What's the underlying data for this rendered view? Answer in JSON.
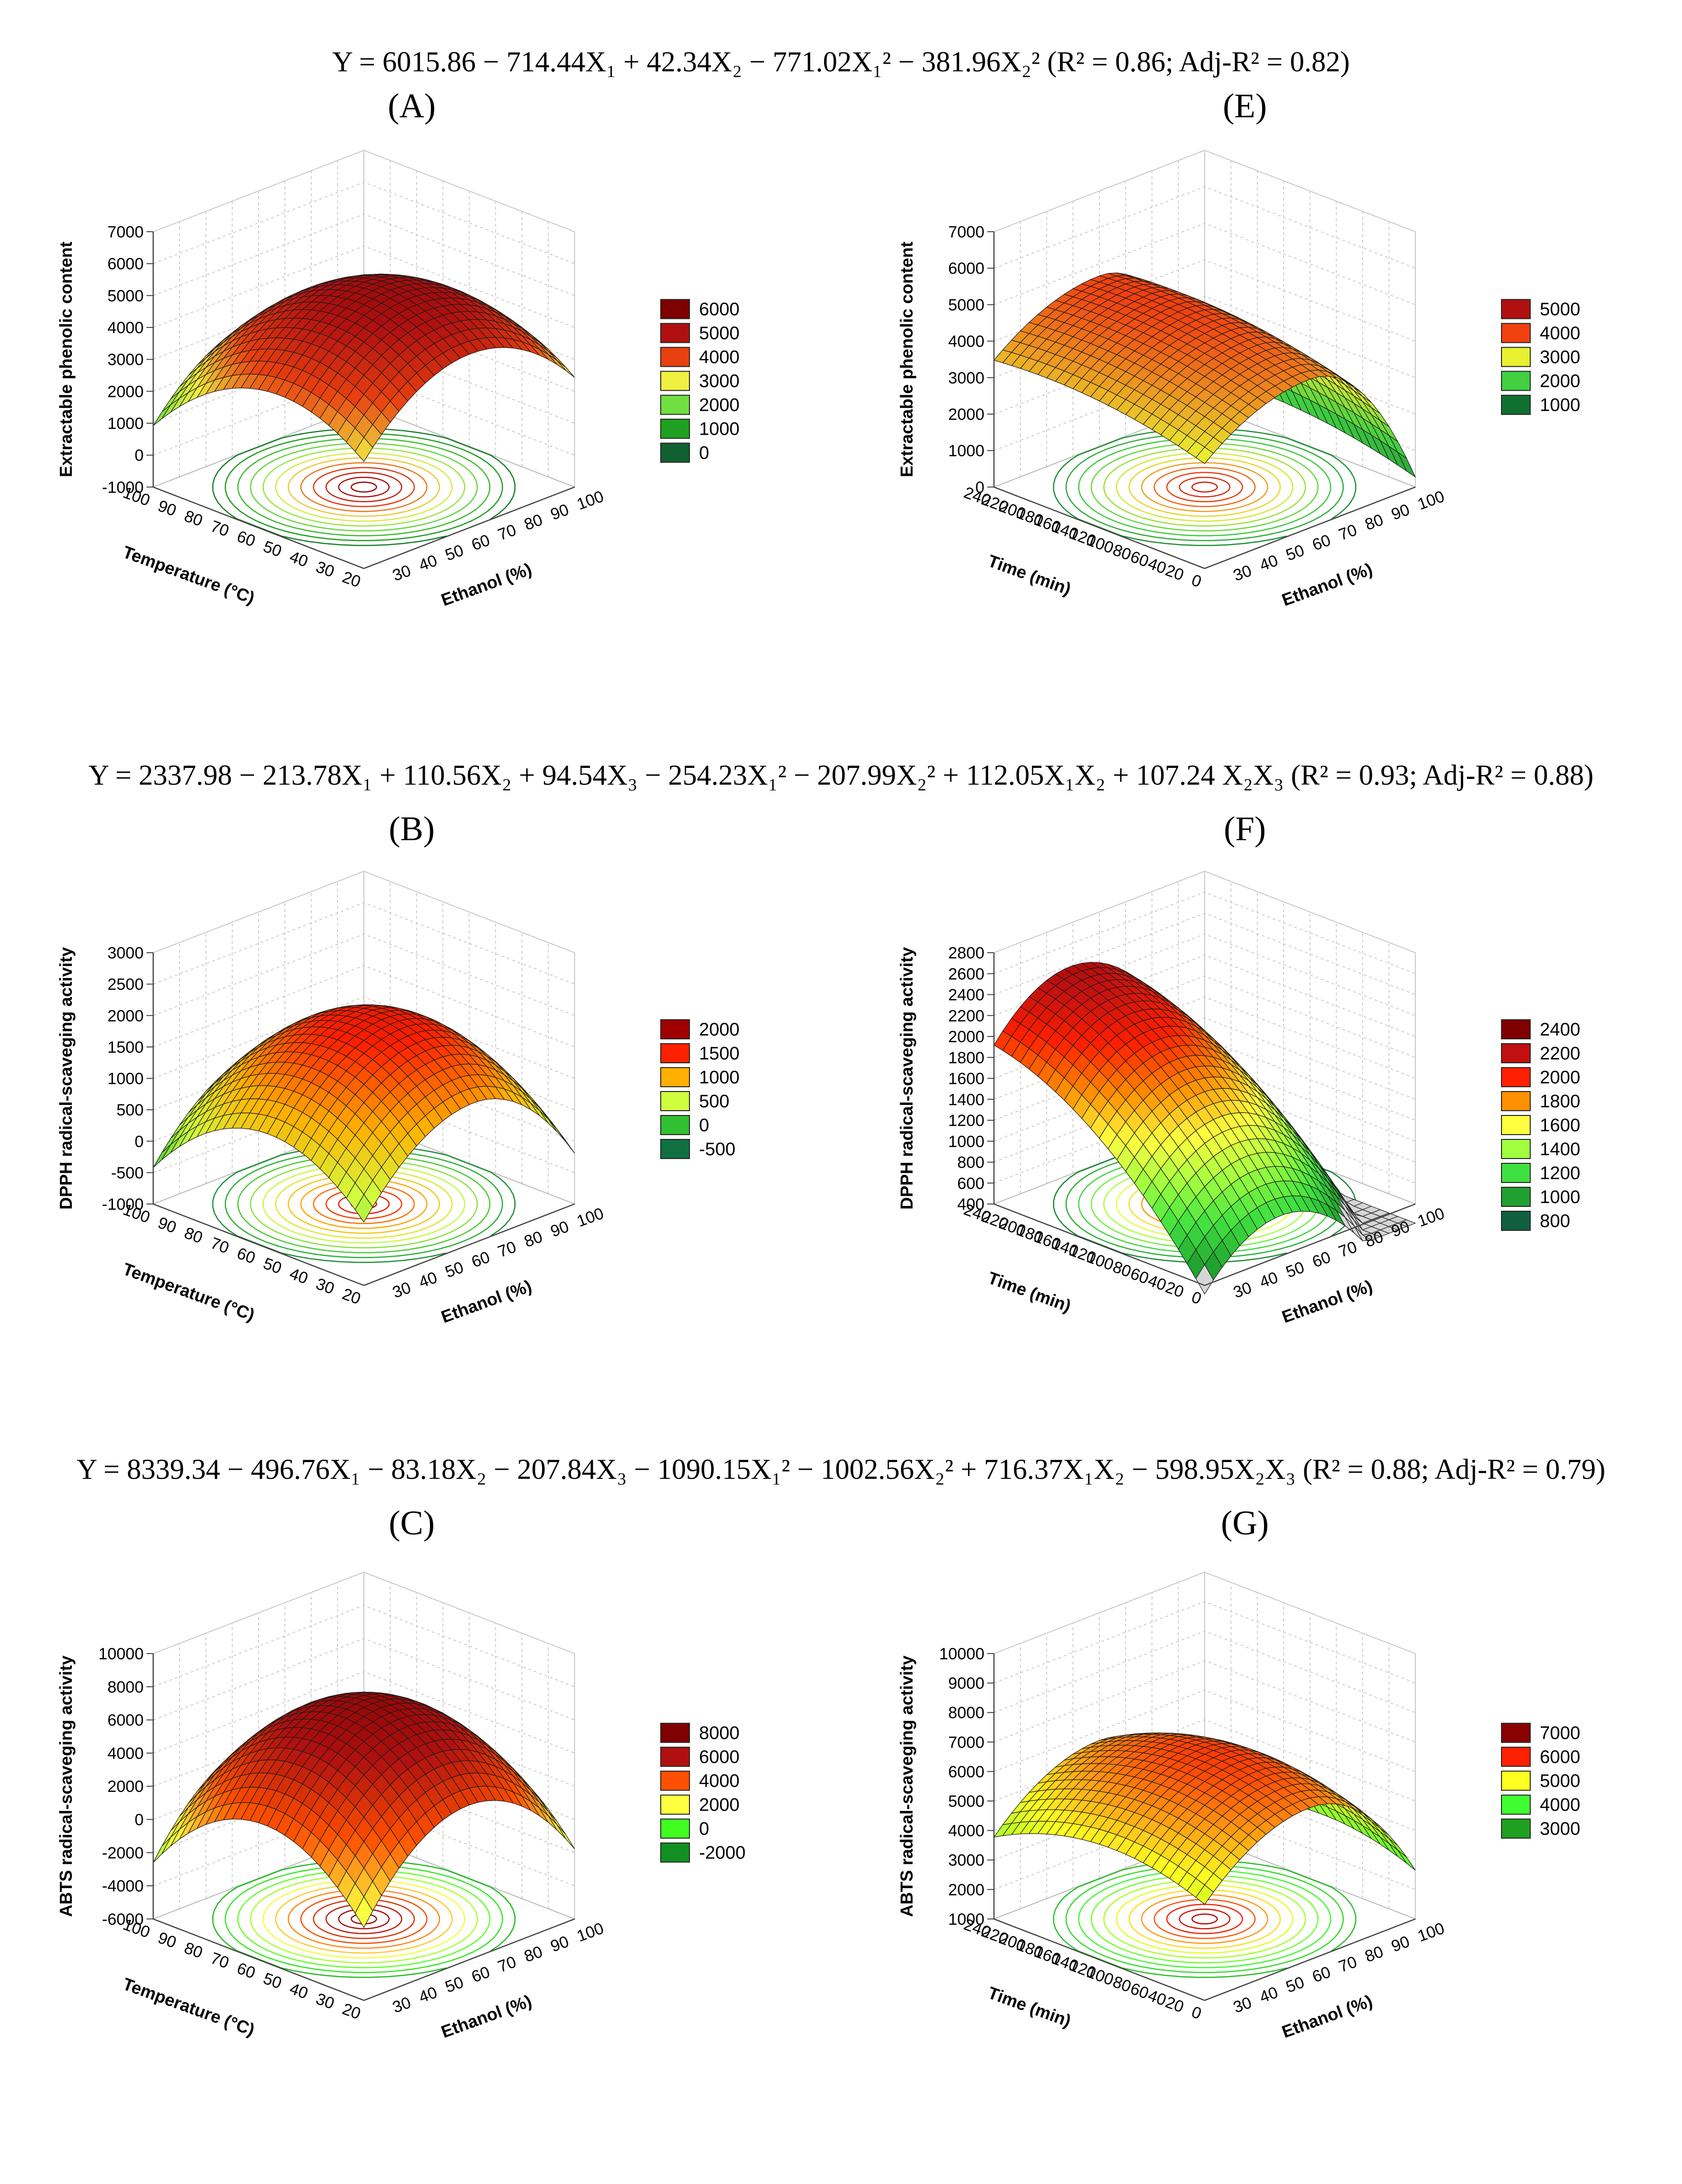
{
  "equations": [
    "Y = 6015.86 − 714.44X₁ + 42.34X₂ − 771.02X₁² − 381.96X₂² (R² = 0.86; Adj-R² = 0.82)",
    "Y = 2337.98 − 213.78X₁ + 110.56X₂ + 94.54X₃ − 254.23X₁² − 207.99X₂² + 112.05X₁X₂ + 107.24 X₂X₃ (R² = 0.93; Adj-R² = 0.88)",
    "Y = 8339.34 − 496.76X₁ − 83.18X₂ − 207.84X₃ − 1090.15X₁² − 1002.56X₂² + 716.37X₁X₂ − 598.95X₂X₃ (R² = 0.88; Adj-R² = 0.79)"
  ],
  "chart_data": [
    {
      "id": "A",
      "type": "surface3d",
      "label": "(A)",
      "zlabel": "Extractable phenolic content",
      "ylabel": "Temperature (°C)",
      "xlabel": "Ethanol (%)",
      "zticks": [
        "7000",
        "6000",
        "5000",
        "4000",
        "3000",
        "2000",
        "1000",
        "0",
        "-1000"
      ],
      "zlim": [
        -1000,
        7000
      ],
      "yticks": [
        "100",
        "90",
        "80",
        "70",
        "60",
        "50",
        "40",
        "30",
        "20"
      ],
      "xticks": [
        "30",
        "40",
        "50",
        "60",
        "70",
        "80",
        "90",
        "100"
      ],
      "ylim": [
        20,
        100
      ],
      "xlim": [
        20,
        100
      ],
      "legend": [
        {
          "label": "6000",
          "color": "#7f0000"
        },
        {
          "label": "5000",
          "color": "#b01010"
        },
        {
          "label": "4000",
          "color": "#e84010"
        },
        {
          "label": "3000",
          "color": "#f0f040"
        },
        {
          "label": "2000",
          "color": "#70e040"
        },
        {
          "label": "1000",
          "color": "#20a020"
        },
        {
          "label": "0",
          "color": "#106030"
        }
      ]
    },
    {
      "id": "E",
      "type": "surface3d",
      "label": "(E)",
      "zlabel": "Extractable phenolic content",
      "ylabel": "Time (min)",
      "xlabel": "Ethanol (%)",
      "zticks": [
        "7000",
        "6000",
        "5000",
        "4000",
        "3000",
        "2000",
        "1000",
        "0"
      ],
      "zlim": [
        0,
        7000
      ],
      "yticks": [
        "240",
        "220",
        "200",
        "180",
        "160",
        "140",
        "120",
        "100",
        "80",
        "60",
        "40",
        "20",
        "0"
      ],
      "xticks": [
        "30",
        "40",
        "50",
        "60",
        "70",
        "80",
        "90",
        "100"
      ],
      "ylim": [
        0,
        240
      ],
      "xlim": [
        20,
        100
      ],
      "legend": [
        {
          "label": "5000",
          "color": "#b01010"
        },
        {
          "label": "4000",
          "color": "#f04010"
        },
        {
          "label": "3000",
          "color": "#e8f030"
        },
        {
          "label": "2000",
          "color": "#40d040"
        },
        {
          "label": "1000",
          "color": "#107030"
        }
      ]
    },
    {
      "id": "B",
      "type": "surface3d",
      "label": "(B)",
      "zlabel": "DPPH radical-scaveging activity",
      "ylabel": "Temperature (°C)",
      "xlabel": "Ethanol (%)",
      "zticks": [
        "3000",
        "2500",
        "2000",
        "1500",
        "1000",
        "500",
        "0",
        "-500",
        "-1000"
      ],
      "zlim": [
        -1000,
        3000
      ],
      "yticks": [
        "100",
        "90",
        "80",
        "70",
        "60",
        "50",
        "40",
        "30",
        "20"
      ],
      "xticks": [
        "30",
        "40",
        "50",
        "60",
        "70",
        "80",
        "90",
        "100"
      ],
      "ylim": [
        20,
        100
      ],
      "xlim": [
        20,
        100
      ],
      "legend": [
        {
          "label": "2000",
          "color": "#a00000"
        },
        {
          "label": "1500",
          "color": "#ff2000"
        },
        {
          "label": "1000",
          "color": "#ffb000"
        },
        {
          "label": "500",
          "color": "#d0ff40"
        },
        {
          "label": "0",
          "color": "#30c030"
        },
        {
          "label": "-500",
          "color": "#107040"
        }
      ]
    },
    {
      "id": "F",
      "type": "surface3d",
      "label": "(F)",
      "zlabel": "DPPH radical-scaveging activity",
      "ylabel": "Time (min)",
      "xlabel": "Ethanol (%)",
      "zticks": [
        "2800",
        "2600",
        "2400",
        "2200",
        "2000",
        "1800",
        "1600",
        "1400",
        "1200",
        "1000",
        "800",
        "600",
        "400"
      ],
      "zlim": [
        400,
        2800
      ],
      "yticks": [
        "240",
        "220",
        "200",
        "180",
        "160",
        "140",
        "120",
        "100",
        "80",
        "60",
        "40",
        "20",
        "0"
      ],
      "xticks": [
        "30",
        "40",
        "50",
        "60",
        "70",
        "80",
        "90",
        "100"
      ],
      "ylim": [
        0,
        240
      ],
      "xlim": [
        20,
        100
      ],
      "legend": [
        {
          "label": "2400",
          "color": "#800000"
        },
        {
          "label": "2200",
          "color": "#c01010"
        },
        {
          "label": "2000",
          "color": "#ff2000"
        },
        {
          "label": "1800",
          "color": "#ff9000"
        },
        {
          "label": "1600",
          "color": "#ffff40"
        },
        {
          "label": "1400",
          "color": "#a0ff40"
        },
        {
          "label": "1200",
          "color": "#40e040"
        },
        {
          "label": "1000",
          "color": "#20a030"
        },
        {
          "label": "800",
          "color": "#106040"
        }
      ]
    },
    {
      "id": "C",
      "type": "surface3d",
      "label": "(C)",
      "zlabel": "ABTS radical-scaveging activity",
      "ylabel": "Temperature (°C)",
      "xlabel": "Ethanol (%)",
      "zticks": [
        "10000",
        "8000",
        "6000",
        "4000",
        "2000",
        "0",
        "-2000",
        "-4000",
        "-6000"
      ],
      "zlim": [
        -6000,
        10000
      ],
      "yticks": [
        "100",
        "90",
        "80",
        "70",
        "60",
        "50",
        "40",
        "30",
        "20"
      ],
      "xticks": [
        "30",
        "40",
        "50",
        "60",
        "70",
        "80",
        "90",
        "100"
      ],
      "ylim": [
        20,
        100
      ],
      "xlim": [
        20,
        100
      ],
      "legend": [
        {
          "label": "8000",
          "color": "#800000"
        },
        {
          "label": "6000",
          "color": "#b01010"
        },
        {
          "label": "4000",
          "color": "#ff5000"
        },
        {
          "label": "2000",
          "color": "#ffff40"
        },
        {
          "label": "0",
          "color": "#40ff20"
        },
        {
          "label": "-2000",
          "color": "#109020"
        }
      ]
    },
    {
      "id": "G",
      "type": "surface3d",
      "label": "(G)",
      "zlabel": "ABTS radical-scaveging activity",
      "ylabel": "Time (min)",
      "xlabel": "Ethanol (%)",
      "zticks": [
        "10000",
        "9000",
        "8000",
        "7000",
        "6000",
        "5000",
        "4000",
        "3000",
        "2000",
        "1000"
      ],
      "zlim": [
        1000,
        10000
      ],
      "yticks": [
        "240",
        "220",
        "200",
        "180",
        "160",
        "140",
        "120",
        "100",
        "80",
        "60",
        "40",
        "20",
        "0"
      ],
      "xticks": [
        "30",
        "40",
        "50",
        "60",
        "70",
        "80",
        "90",
        "100"
      ],
      "ylim": [
        0,
        240
      ],
      "xlim": [
        20,
        100
      ],
      "legend": [
        {
          "label": "7000",
          "color": "#8a0000"
        },
        {
          "label": "6000",
          "color": "#ff2000"
        },
        {
          "label": "5000",
          "color": "#ffff20"
        },
        {
          "label": "4000",
          "color": "#40ff30"
        },
        {
          "label": "3000",
          "color": "#20a020"
        }
      ]
    }
  ]
}
